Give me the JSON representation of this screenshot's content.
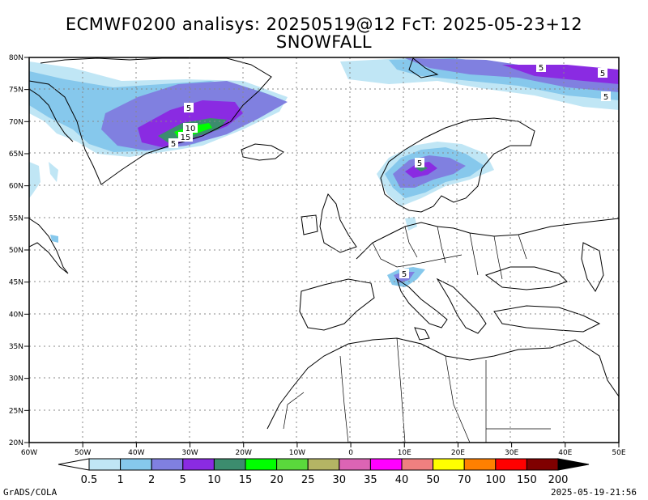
{
  "title_line1": "ECMWF0200 analisys: 20250519@12 FcT: 2025-05-23+12",
  "title_line2": "SNOWFALL",
  "lon_ticks": [
    "60W",
    "50W",
    "40W",
    "30W",
    "20W",
    "10W",
    "0",
    "10E",
    "20E",
    "30E",
    "40E",
    "50E"
  ],
  "lat_ticks": [
    "20N",
    "25N",
    "30N",
    "35N",
    "40N",
    "45N",
    "50N",
    "55N",
    "60N",
    "65N",
    "70N",
    "75N",
    "80N"
  ],
  "contour_labels": [
    "5",
    "5",
    "5",
    "10",
    "15",
    "5",
    "5",
    "5",
    "5"
  ],
  "legend": {
    "labels": [
      "0.5",
      "1",
      "2",
      "5",
      "10",
      "15",
      "20",
      "25",
      "30",
      "35",
      "40",
      "50",
      "70",
      "100",
      "150",
      "200"
    ],
    "colors": [
      "#ffffff",
      "#c0e6f5",
      "#86c8ec",
      "#8080e0",
      "#8a2be2",
      "#3c8c6e",
      "#00ff00",
      "#5ad93c",
      "#b4b464",
      "#dc64b4",
      "#ff00ff",
      "#f08080",
      "#ffff00",
      "#ff8000",
      "#ff0000",
      "#800000",
      "#000000"
    ]
  },
  "footer_left": "GrADS/COLA",
  "footer_right": "2025-05-19-21:56"
}
